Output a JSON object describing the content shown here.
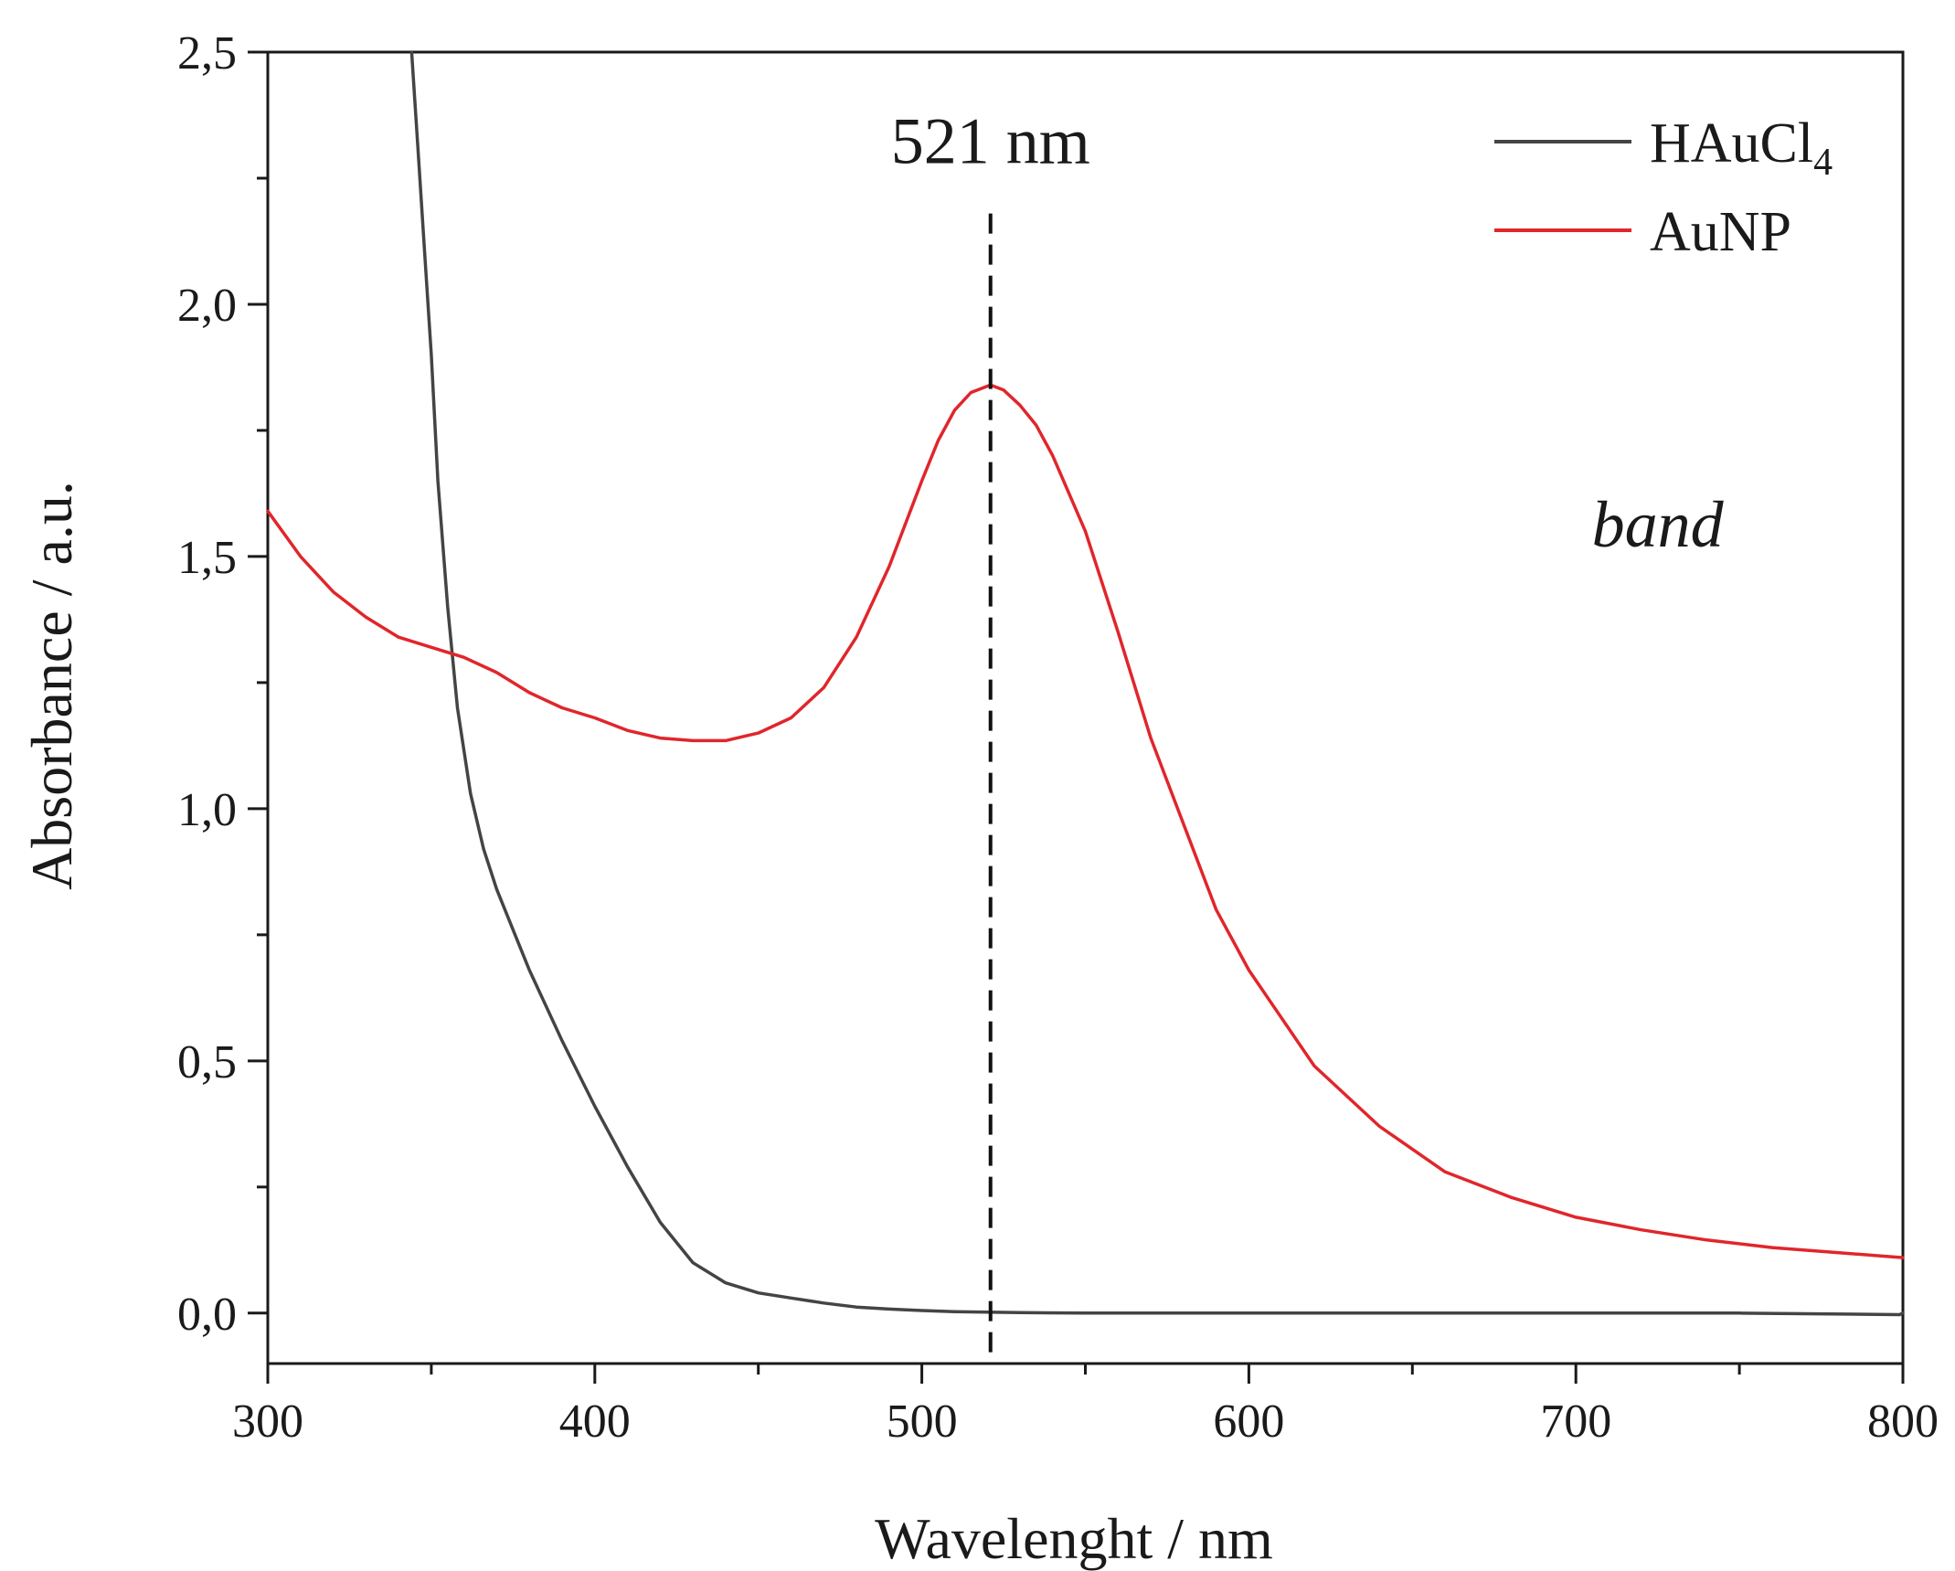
{
  "chart_data": {
    "type": "line",
    "xlabel": "Wavelenght / nm",
    "ylabel": "Absorbance / a.u.",
    "xlim": [
      300,
      800
    ],
    "ylim": [
      -0.1,
      2.5
    ],
    "x_ticks": [
      300,
      400,
      500,
      600,
      700,
      800
    ],
    "x_tick_labels": [
      "300",
      "400",
      "500",
      "600",
      "700",
      "800"
    ],
    "y_ticks": [
      0.0,
      0.5,
      1.0,
      1.5,
      2.0,
      2.5
    ],
    "y_tick_labels": [
      "0,0",
      "0,5",
      "1,0",
      "1,5",
      "2,0",
      "2,5"
    ],
    "grid": false,
    "legend": {
      "placement": "top-right"
    },
    "series": [
      {
        "name": "HAuCl",
        "name_subscript": "4",
        "color": "#444444",
        "x": [
          344,
          346,
          348,
          350,
          352,
          355,
          358,
          362,
          366,
          370,
          375,
          380,
          390,
          400,
          410,
          420,
          430,
          440,
          450,
          460,
          470,
          480,
          490,
          500,
          510,
          520,
          530,
          550,
          600,
          650,
          700,
          750,
          799,
          800
        ],
        "y": [
          2.5,
          2.3,
          2.1,
          1.9,
          1.65,
          1.4,
          1.2,
          1.03,
          0.92,
          0.84,
          0.76,
          0.68,
          0.54,
          0.41,
          0.29,
          0.18,
          0.1,
          0.06,
          0.04,
          0.03,
          0.02,
          0.012,
          0.008,
          0.005,
          0.003,
          0.002,
          0.001,
          0.0,
          0.0,
          0.0,
          0.0,
          0.0,
          -0.003,
          0.0
        ]
      },
      {
        "name": "AuNP",
        "color": "#e0262b",
        "x": [
          300,
          310,
          320,
          330,
          340,
          350,
          360,
          370,
          380,
          390,
          400,
          410,
          420,
          430,
          440,
          450,
          460,
          470,
          480,
          490,
          500,
          505,
          510,
          515,
          521,
          525,
          530,
          535,
          540,
          550,
          560,
          570,
          580,
          590,
          600,
          620,
          640,
          660,
          680,
          700,
          720,
          740,
          760,
          780,
          800
        ],
        "y": [
          1.59,
          1.5,
          1.43,
          1.38,
          1.34,
          1.32,
          1.3,
          1.27,
          1.23,
          1.2,
          1.18,
          1.155,
          1.14,
          1.135,
          1.135,
          1.15,
          1.18,
          1.24,
          1.34,
          1.48,
          1.65,
          1.73,
          1.79,
          1.825,
          1.84,
          1.83,
          1.8,
          1.76,
          1.7,
          1.55,
          1.35,
          1.14,
          0.97,
          0.8,
          0.68,
          0.49,
          0.37,
          0.28,
          0.23,
          0.19,
          0.165,
          0.145,
          0.13,
          0.12,
          0.11
        ]
      }
    ],
    "annotations": [
      {
        "type": "vline",
        "x": 521,
        "y_top": 2.18,
        "style": "dashed"
      },
      {
        "text": "521 nm",
        "x": 521,
        "y": 2.28
      },
      {
        "text": "band",
        "x": 725,
        "y": 1.52,
        "style": "italic"
      }
    ]
  }
}
